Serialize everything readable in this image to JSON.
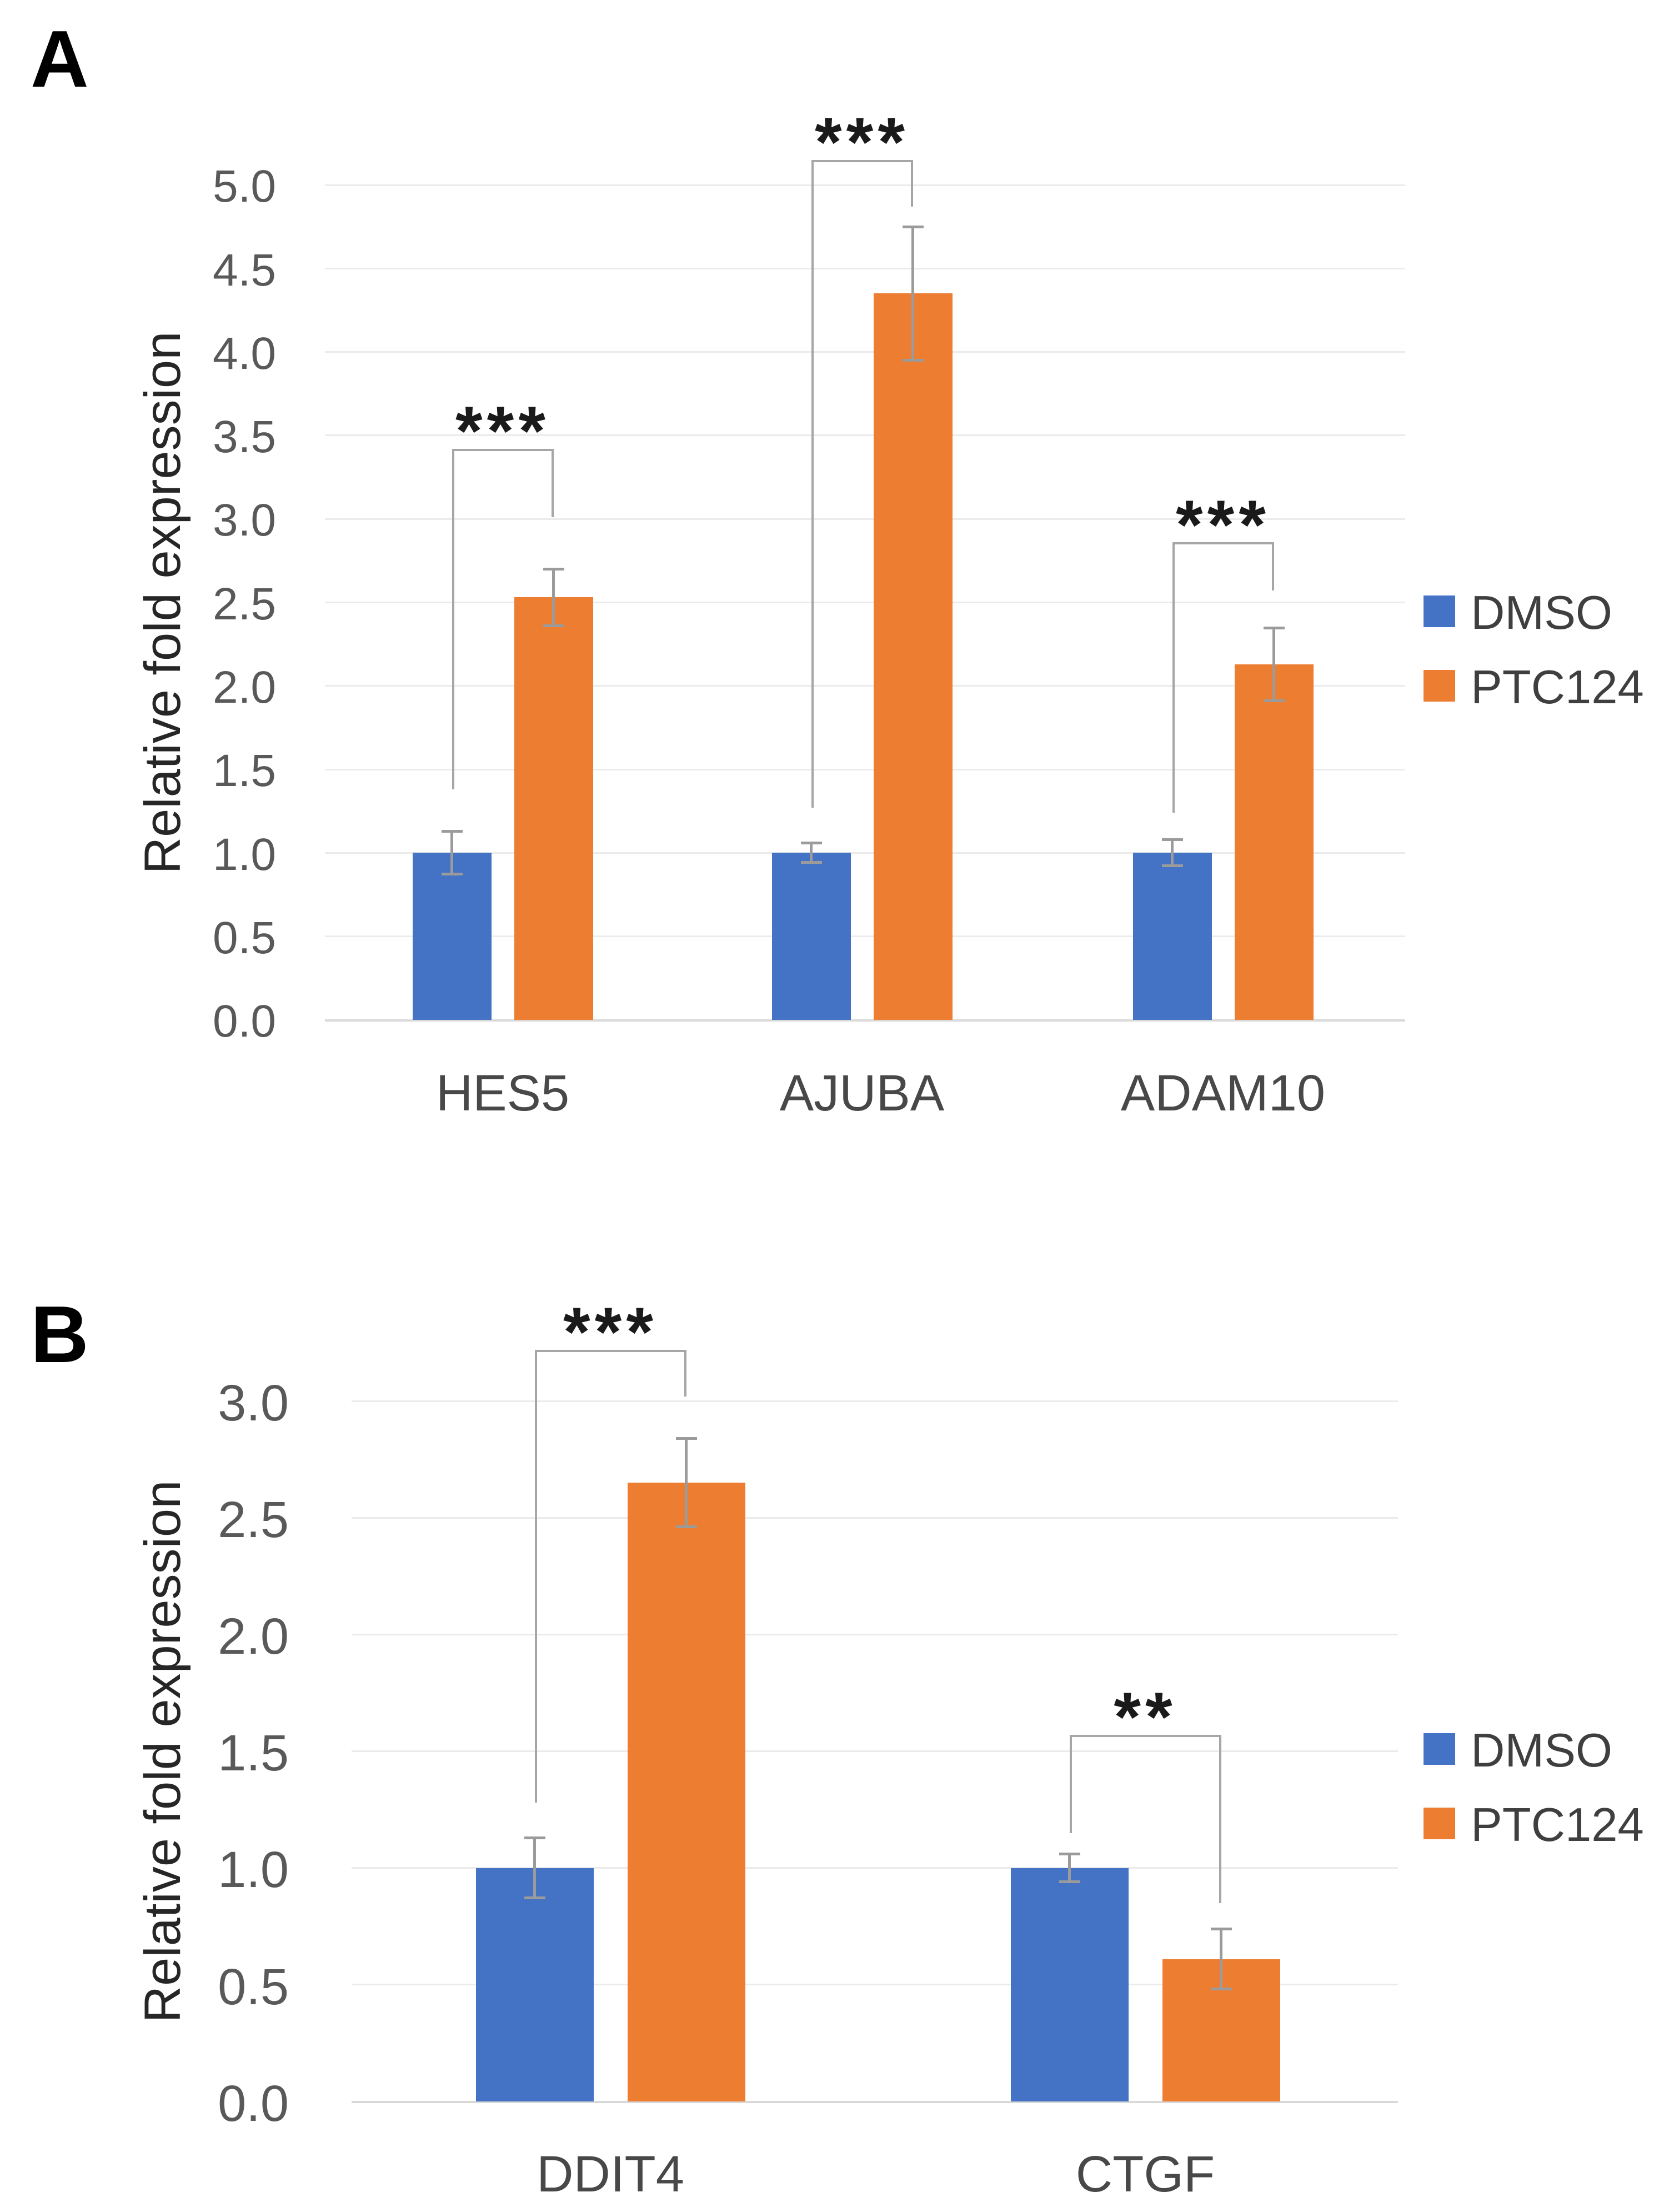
{
  "panels": [
    {
      "letter": "A"
    },
    {
      "letter": "B"
    }
  ],
  "legend": {
    "items": [
      {
        "label": "DMSO",
        "color": "#4472C4"
      },
      {
        "label": "PTC124",
        "color": "#ED7D31"
      }
    ]
  },
  "colors": {
    "dmso": "#4472C4",
    "ptc124": "#ED7D31",
    "gridline": "#ebebeb",
    "axis_line": "#d9d9d9",
    "error_bar": "#9b9b9b",
    "bracket": "#a6a6a6"
  },
  "chart_data": [
    {
      "type": "bar",
      "panel": "A",
      "title": "",
      "xlabel": "",
      "ylabel": "Relative fold expression",
      "categories": [
        "HES5",
        "AJUBA",
        "ADAM10"
      ],
      "series": [
        {
          "name": "DMSO",
          "color": "#4472C4",
          "values": [
            1.0,
            1.0,
            1.0
          ],
          "errors": [
            0.13,
            0.06,
            0.08
          ]
        },
        {
          "name": "PTC124",
          "color": "#ED7D31",
          "values": [
            2.53,
            4.35,
            2.13
          ],
          "errors": [
            0.17,
            0.4,
            0.22
          ]
        }
      ],
      "ylim": [
        0,
        5.0
      ],
      "yticks": [
        "0.0",
        "0.5",
        "1.0",
        "1.5",
        "2.0",
        "2.5",
        "3.0",
        "3.5",
        "4.0",
        "4.5",
        "5.0"
      ],
      "grid": true,
      "legend_position": "right",
      "significance": [
        {
          "label": "***",
          "top": 3.42,
          "left_end": 1.38,
          "right_end": 3.01
        },
        {
          "label": "***",
          "top": 5.15,
          "left_end": 1.27,
          "right_end": 4.87
        },
        {
          "label": "***",
          "top": 2.86,
          "left_end": 1.24,
          "right_end": 2.57
        }
      ]
    },
    {
      "type": "bar",
      "panel": "B",
      "title": "",
      "xlabel": "",
      "ylabel": "Relative fold expression",
      "categories": [
        "DDIT4",
        "CTGF"
      ],
      "series": [
        {
          "name": "DMSO",
          "color": "#4472C4",
          "values": [
            1.0,
            1.0
          ],
          "errors": [
            0.13,
            0.06
          ]
        },
        {
          "name": "PTC124",
          "color": "#ED7D31",
          "values": [
            2.65,
            0.61
          ],
          "errors": [
            0.19,
            0.13
          ]
        }
      ],
      "ylim": [
        0,
        3.0
      ],
      "yticks": [
        "0.0",
        "0.5",
        "1.0",
        "1.5",
        "2.0",
        "2.5",
        "3.0"
      ],
      "grid": true,
      "legend_position": "right",
      "significance": [
        {
          "label": "***",
          "top": 3.22,
          "left_end": 1.28,
          "right_end": 3.02
        },
        {
          "label": "**",
          "top": 1.57,
          "left_end": 1.15,
          "right_end": 0.85
        }
      ]
    }
  ]
}
